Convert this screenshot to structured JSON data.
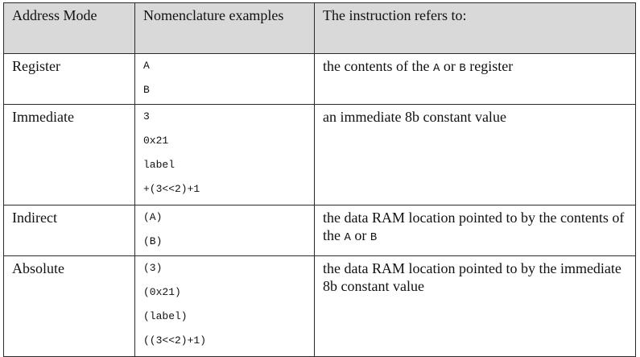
{
  "table": {
    "headers": [
      "Address Mode",
      "Nomenclature examples",
      "The instruction refers to:"
    ],
    "rows": [
      {
        "mode": "Register",
        "examples": [
          "A",
          "B"
        ],
        "description": [
          {
            "text": "the contents of the "
          },
          {
            "code": "A"
          },
          {
            "text": " or "
          },
          {
            "code": "B"
          },
          {
            "text": " register"
          }
        ]
      },
      {
        "mode": "Immediate",
        "examples": [
          "3",
          "0x21",
          "label",
          "+(3<<2)+1"
        ],
        "description": [
          {
            "text": "an immediate 8b constant value"
          }
        ]
      },
      {
        "mode": "Indirect",
        "examples": [
          "(A)",
          "(B)"
        ],
        "description": [
          {
            "text": "the data RAM location pointed to by the contents of the "
          },
          {
            "code": "A"
          },
          {
            "text": " or "
          },
          {
            "code": "B"
          }
        ]
      },
      {
        "mode": "Absolute",
        "examples": [
          "(3)",
          "(0x21)",
          "(label)",
          "((3<<2)+1)"
        ],
        "description": [
          {
            "text": "the data RAM location pointed to by the immediate 8b constant value"
          }
        ]
      }
    ]
  }
}
